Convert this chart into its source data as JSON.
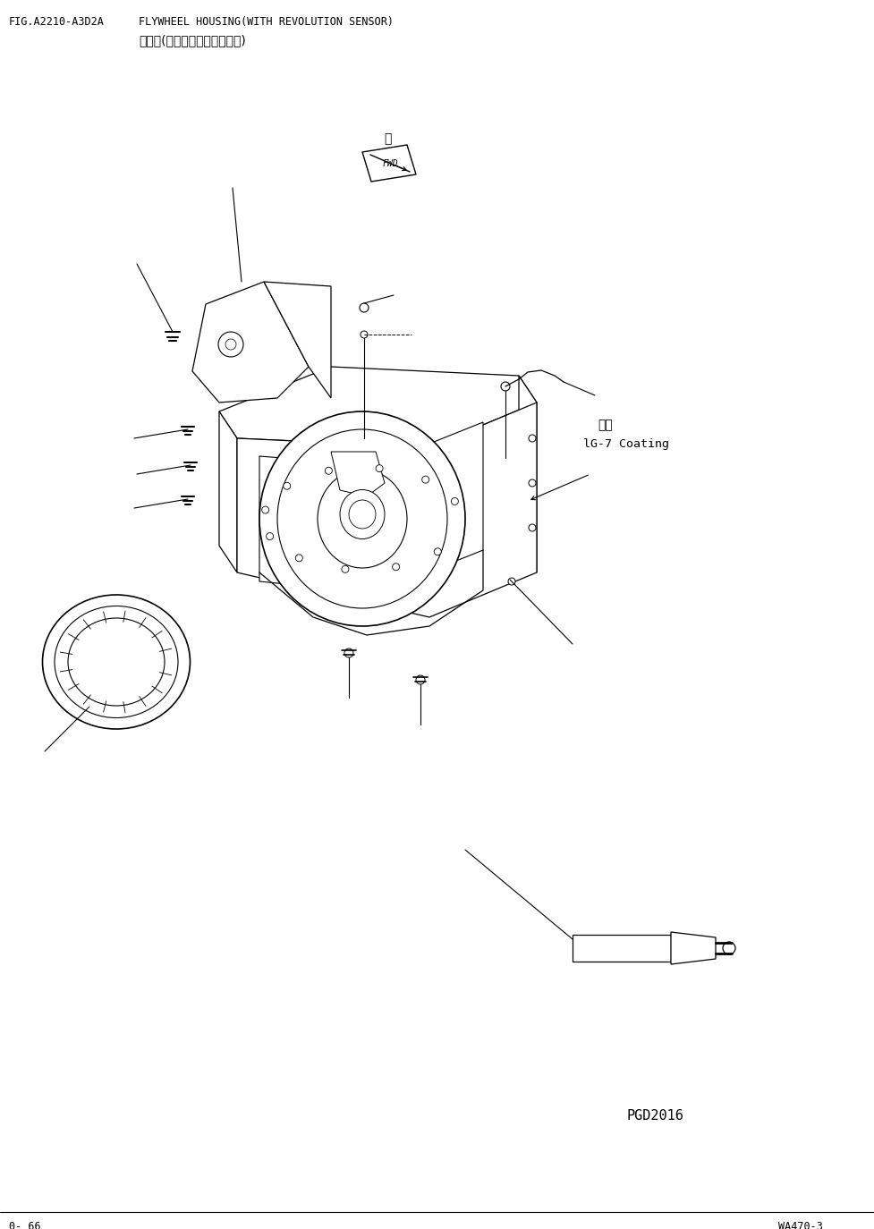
{
  "fig_id": "FIG.A2210-A3D2A",
  "title_en": "FLYWHEEL HOUSING(WITH REVOLUTION SENSOR)",
  "title_cn": "飞轮屘(带有发动机转数传感器)",
  "page_left": "0- 66",
  "page_right": "WA470-3",
  "fig_ref": "PGD2016",
  "coating_cn": "涂层",
  "coating_en": "lG-7 Coating",
  "fwd_label": "前",
  "background": "#ffffff",
  "line_color": "#000000",
  "font_color": "#000000"
}
